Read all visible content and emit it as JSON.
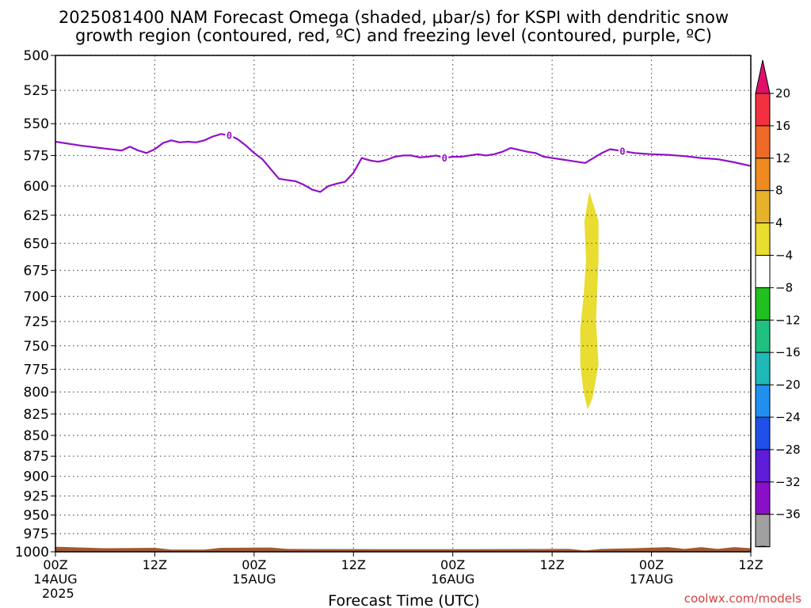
{
  "chart_data": {
    "type": "heatmap",
    "title_lines": [
      "2025081400 NAM Forecast Omega (shaded, μbar/s) for KSPI with dendritic snow",
      "growth region (contoured, red, ºC) and freezing level (contoured, purple, ºC)"
    ],
    "xlabel": "Forecast Time (UTC)",
    "credit": "coolwx.com/models",
    "x_range_hours": [
      0,
      84
    ],
    "x_ticks": [
      {
        "hour": 0,
        "label": "00Z",
        "sub": "14AUG",
        "sub2": "2025"
      },
      {
        "hour": 12,
        "label": "12Z",
        "sub": "",
        "sub2": ""
      },
      {
        "hour": 24,
        "label": "00Z",
        "sub": "15AUG",
        "sub2": ""
      },
      {
        "hour": 36,
        "label": "12Z",
        "sub": "",
        "sub2": ""
      },
      {
        "hour": 48,
        "label": "00Z",
        "sub": "16AUG",
        "sub2": ""
      },
      {
        "hour": 60,
        "label": "12Z",
        "sub": "",
        "sub2": ""
      },
      {
        "hour": 72,
        "label": "00Z",
        "sub": "17AUG",
        "sub2": ""
      },
      {
        "hour": 84,
        "label": "12Z",
        "sub": "",
        "sub2": ""
      }
    ],
    "y_axis": {
      "unit": "hPa",
      "log_scale": true,
      "range": [
        500,
        1000
      ],
      "inverted": true
    },
    "y_ticks": [
      "500",
      "525",
      "550",
      "575",
      "600",
      "625",
      "650",
      "675",
      "700",
      "725",
      "750",
      "775",
      "800",
      "825",
      "850",
      "875",
      "900",
      "925",
      "950",
      "975",
      "1000"
    ],
    "grid": true,
    "colorbar": {
      "labels": [
        "20",
        "16",
        "12",
        "8",
        "4",
        "-4",
        "-8",
        "-12",
        "-16",
        "-20",
        "-24",
        "-28",
        "-32",
        "-36"
      ],
      "colors": [
        "#f33040",
        "#ef6a28",
        "#ee8a20",
        "#e6b22a",
        "#e8dd30",
        "#ffffff",
        "#20c020",
        "#20c080",
        "#20b8b8",
        "#2090f0",
        "#2050e8",
        "#5e1cd8",
        "#8a10c8",
        "#a0a0a0"
      ],
      "top_arrow_color": "#e0106a",
      "bottom_arrow_color": "#000000"
    },
    "freezing_level": {
      "color": "#9010c8",
      "contour_label": "0",
      "label_hours": [
        21,
        47,
        68.5
      ],
      "points": [
        [
          0,
          564
        ],
        [
          3,
          567
        ],
        [
          6,
          569.5
        ],
        [
          8,
          571
        ],
        [
          9,
          568
        ],
        [
          10,
          571
        ],
        [
          11,
          573
        ],
        [
          12,
          570
        ],
        [
          13,
          565
        ],
        [
          14,
          563
        ],
        [
          15,
          564.5
        ],
        [
          16,
          564
        ],
        [
          17,
          564.5
        ],
        [
          18,
          563
        ],
        [
          19,
          560
        ],
        [
          20,
          558
        ],
        [
          21,
          559
        ],
        [
          22,
          562
        ],
        [
          23,
          567
        ],
        [
          24,
          573
        ],
        [
          25,
          578
        ],
        [
          26,
          586
        ],
        [
          27,
          594
        ],
        [
          28,
          595
        ],
        [
          29,
          596
        ],
        [
          30,
          599
        ],
        [
          31,
          603
        ],
        [
          32,
          605
        ],
        [
          33,
          600
        ],
        [
          34,
          598
        ],
        [
          35,
          596.5
        ],
        [
          36,
          589
        ],
        [
          37,
          577
        ],
        [
          38,
          579
        ],
        [
          39,
          580
        ],
        [
          40,
          578.5
        ],
        [
          41,
          576
        ],
        [
          42,
          575
        ],
        [
          43,
          575
        ],
        [
          44,
          576.5
        ],
        [
          45,
          576
        ],
        [
          46,
          575
        ],
        [
          47,
          577
        ],
        [
          48,
          576
        ],
        [
          49,
          576
        ],
        [
          50,
          575
        ],
        [
          51,
          574
        ],
        [
          52,
          575
        ],
        [
          53,
          574
        ],
        [
          54,
          572
        ],
        [
          55,
          569
        ],
        [
          56,
          570.5
        ],
        [
          57,
          572
        ],
        [
          58,
          573
        ],
        [
          59,
          576
        ],
        [
          60,
          577
        ],
        [
          61,
          578
        ],
        [
          62,
          579
        ],
        [
          63,
          580
        ],
        [
          64,
          581
        ],
        [
          65,
          577
        ],
        [
          66,
          573
        ],
        [
          67,
          570
        ],
        [
          68,
          571
        ],
        [
          69,
          572
        ],
        [
          70,
          573
        ],
        [
          71,
          573.5
        ],
        [
          72,
          574
        ],
        [
          74,
          574.5
        ],
        [
          76,
          575.5
        ],
        [
          78,
          577
        ],
        [
          80,
          578
        ],
        [
          82,
          580.5
        ],
        [
          84,
          583.5
        ]
      ]
    },
    "shaded_regions": [
      {
        "name": "omega 4 to 8",
        "color": "#e8dd30",
        "points": [
          [
            64.5,
            605
          ],
          [
            65.6,
            630
          ],
          [
            65.6,
            665
          ],
          [
            65.3,
            725
          ],
          [
            65.6,
            770
          ],
          [
            64.9,
            806
          ],
          [
            64.3,
            820
          ],
          [
            63.8,
            800
          ],
          [
            63.4,
            770
          ],
          [
            63.4,
            732
          ],
          [
            63.8,
            700
          ],
          [
            64.1,
            665
          ],
          [
            63.9,
            630
          ]
        ]
      }
    ],
    "terrain": {
      "color": "#a05a2e",
      "top_pressure": [
        [
          0,
          993
        ],
        [
          6,
          995
        ],
        [
          12,
          994.5
        ],
        [
          14,
          997
        ],
        [
          18,
          997
        ],
        [
          20,
          994.5
        ],
        [
          26,
          994
        ],
        [
          28,
          996
        ],
        [
          40,
          996.5
        ],
        [
          50,
          996.5
        ],
        [
          62,
          996
        ],
        [
          64,
          998
        ],
        [
          66,
          996
        ],
        [
          70,
          995
        ],
        [
          74,
          993.5
        ],
        [
          76,
          996
        ],
        [
          78,
          993.5
        ],
        [
          80,
          996
        ],
        [
          82,
          993.5
        ],
        [
          84,
          995
        ]
      ]
    }
  }
}
